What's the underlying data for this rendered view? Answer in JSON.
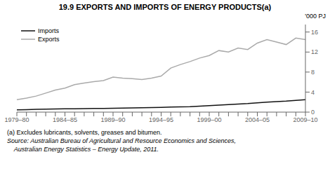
{
  "chart_data": {
    "type": "line",
    "title": "19.9   EXPORTS AND IMPORTS OF ENERGY PRODUCTS(a)",
    "ylabel": "'000 PJ",
    "annotations": [
      "(a) Excludes lubricants, solvents, greases and bitumen.",
      "Source: Australian Bureau of Agricultural and Resource Economics and Sciences,",
      "    Australian Energy Statistics – Energy Update, 2011."
    ],
    "categories": [
      "1979–80",
      null,
      null,
      null,
      null,
      "1984–85",
      null,
      null,
      null,
      null,
      "1989–90",
      null,
      null,
      null,
      null,
      "1994–95",
      null,
      null,
      null,
      null,
      "1999–00",
      null,
      null,
      null,
      null,
      "2004–05",
      null,
      null,
      null,
      null,
      "2009–10"
    ],
    "series": [
      {
        "name": "Exports",
        "color": "#aaaaaa",
        "values": [
          2.5,
          2.8,
          3.2,
          3.8,
          4.4,
          4.8,
          5.5,
          5.8,
          6.1,
          6.3,
          7.0,
          6.8,
          6.7,
          6.5,
          6.8,
          7.2,
          8.8,
          9.5,
          10.1,
          10.8,
          11.3,
          12.3,
          12.0,
          12.8,
          12.5,
          13.8,
          14.5,
          14.0,
          13.5,
          14.8,
          14.5
        ]
      },
      {
        "name": "Imports",
        "color": "#111111",
        "values": [
          0.45,
          0.5,
          0.55,
          0.58,
          0.62,
          0.65,
          0.68,
          0.7,
          0.72,
          0.75,
          0.78,
          0.82,
          0.85,
          0.88,
          0.9,
          0.95,
          1.0,
          1.05,
          1.1,
          1.2,
          1.3,
          1.4,
          1.5,
          1.6,
          1.7,
          1.85,
          2.0,
          2.1,
          2.2,
          2.35,
          2.5
        ]
      }
    ],
    "ylim": [
      0,
      17.5
    ],
    "yticks": [
      0,
      4,
      8,
      12,
      16
    ],
    "legend": "upper left",
    "grid": false
  }
}
